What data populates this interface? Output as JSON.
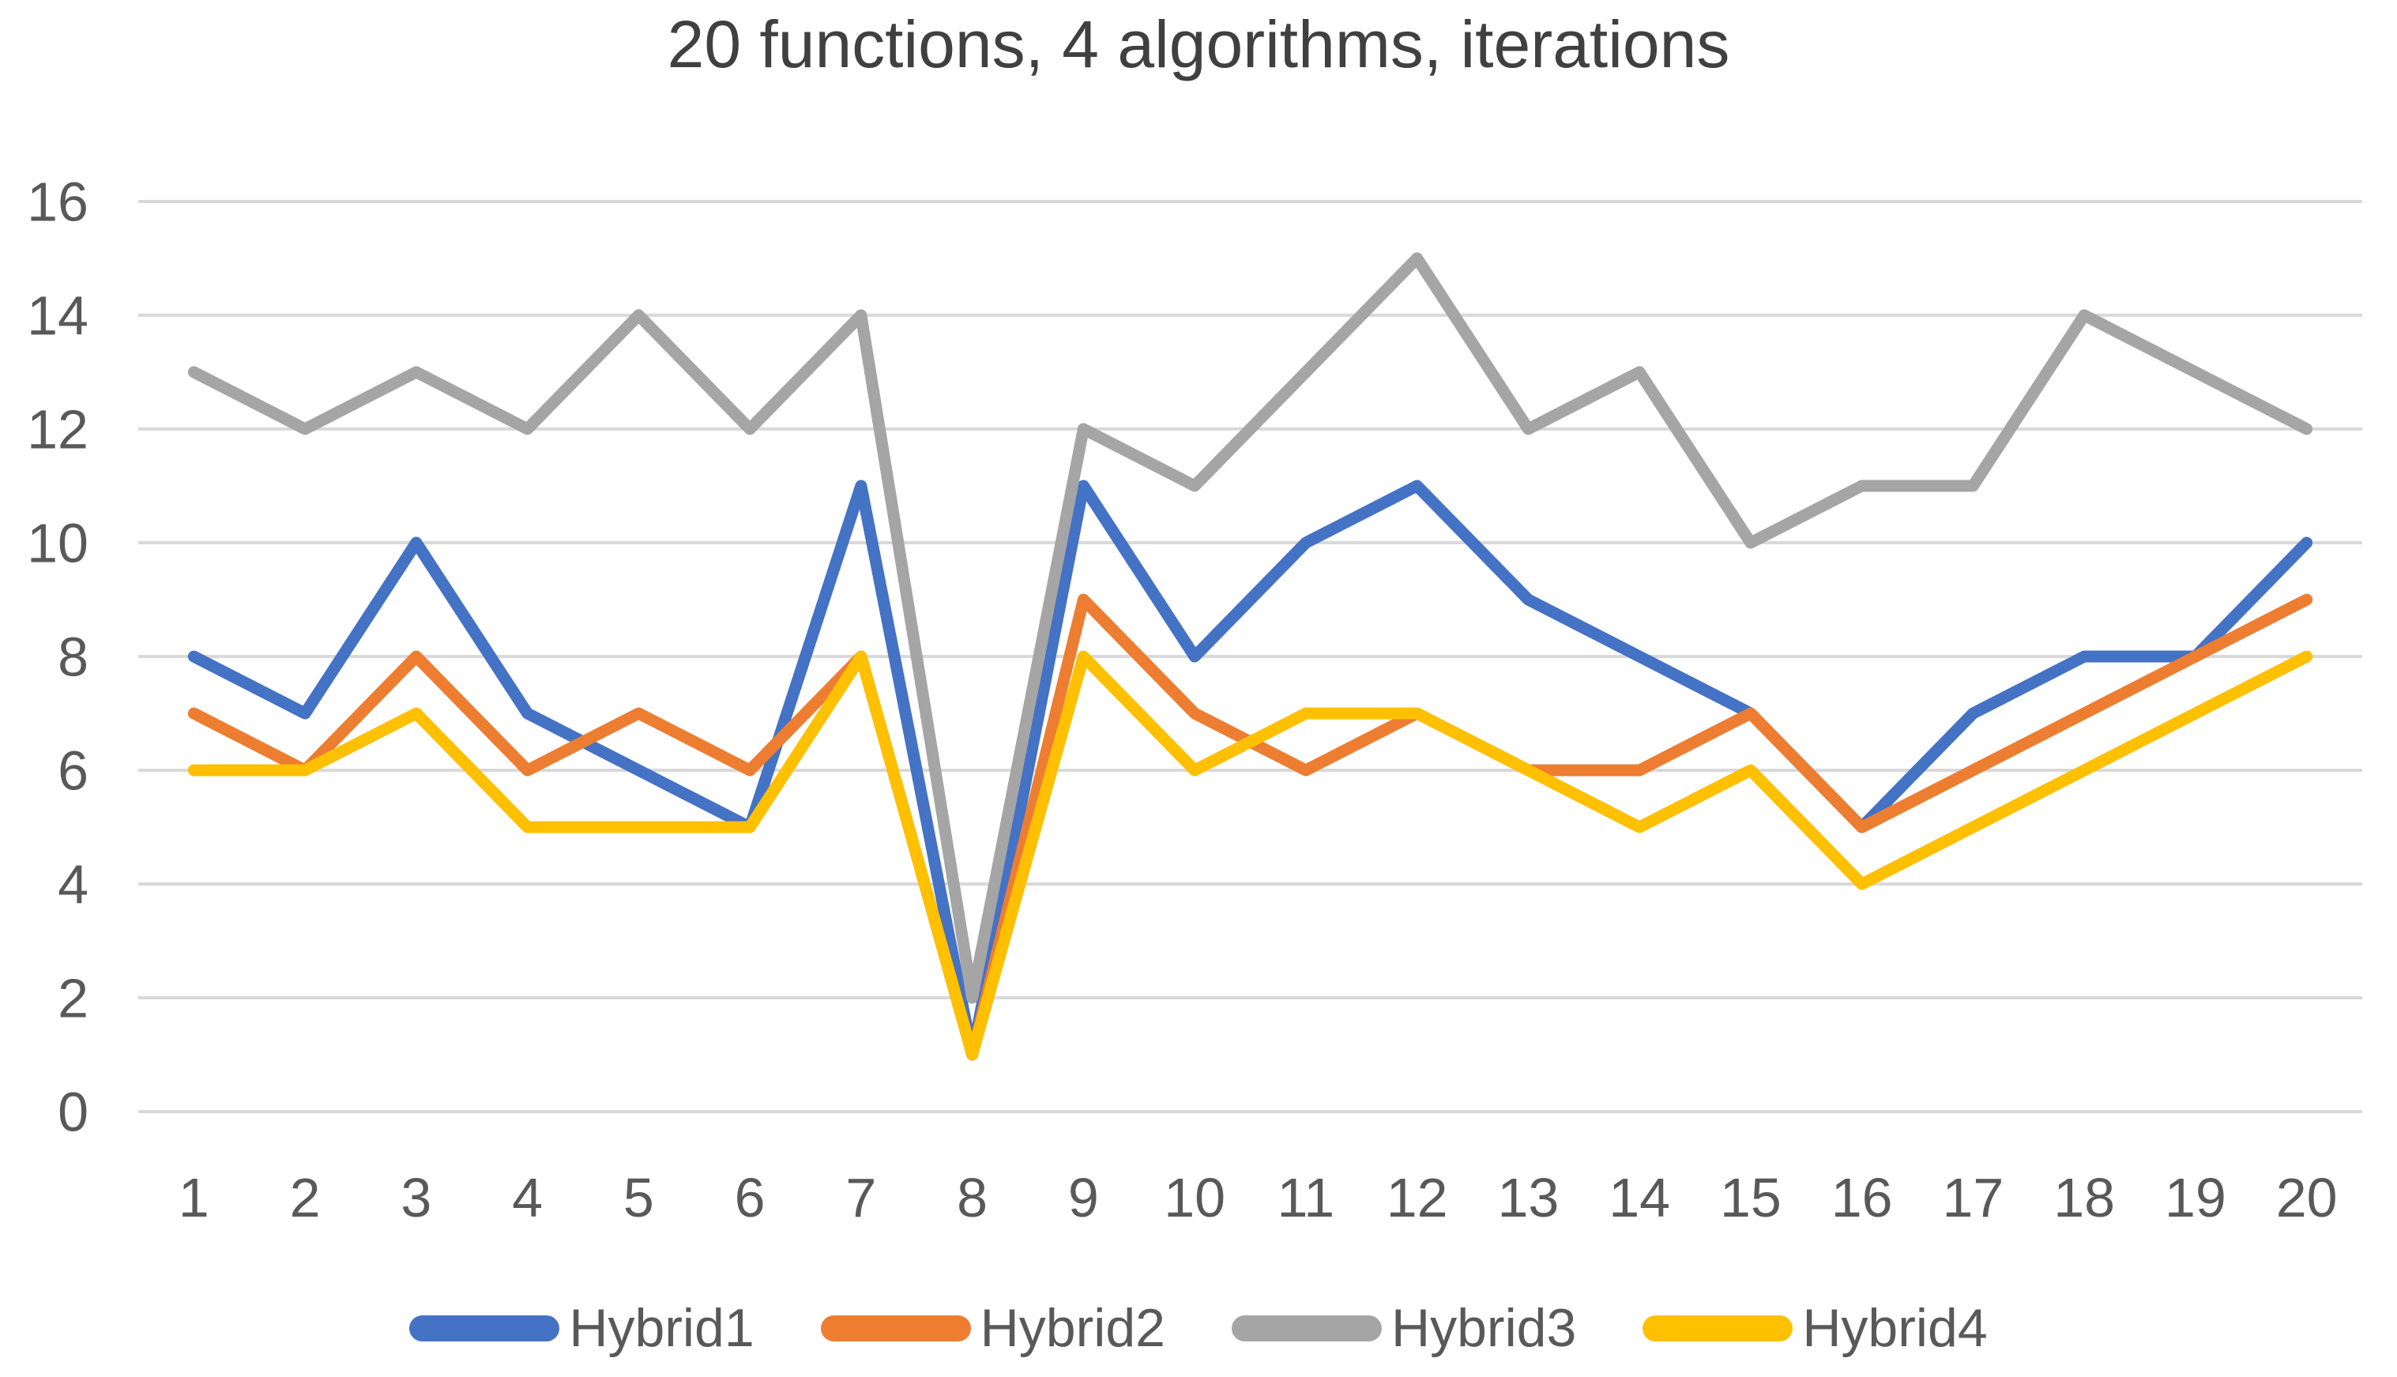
{
  "title": "20 functions, 4 algorithms, iterations",
  "chart_data": {
    "type": "line",
    "title": "20 functions, 4 algorithms, iterations",
    "categories": [
      "1",
      "2",
      "3",
      "4",
      "5",
      "6",
      "7",
      "8",
      "9",
      "10",
      "11",
      "12",
      "13",
      "14",
      "15",
      "16",
      "17",
      "18",
      "19",
      "20"
    ],
    "series": [
      {
        "name": "Hybrid1",
        "color": "#4472C4",
        "values": [
          8,
          7,
          10,
          7,
          6,
          5,
          11,
          1,
          11,
          8,
          10,
          11,
          9,
          8,
          7,
          5,
          7,
          8,
          8,
          10
        ]
      },
      {
        "name": "Hybrid2",
        "color": "#ED7D31",
        "values": [
          7,
          6,
          8,
          6,
          7,
          6,
          8,
          1,
          9,
          7,
          6,
          7,
          6,
          6,
          7,
          5,
          6,
          7,
          8,
          9
        ]
      },
      {
        "name": "Hybrid3",
        "color": "#A5A5A5",
        "values": [
          13,
          12,
          13,
          12,
          14,
          12,
          14,
          2,
          12,
          11,
          13,
          15,
          12,
          13,
          10,
          11,
          11,
          14,
          13,
          12
        ]
      },
      {
        "name": "Hybrid4",
        "color": "#FFC000",
        "values": [
          6,
          6,
          7,
          5,
          5,
          5,
          8,
          1,
          8,
          6,
          7,
          7,
          6,
          5,
          6,
          4,
          5,
          6,
          7,
          8
        ]
      }
    ],
    "xlabel": "",
    "ylabel": "",
    "ylim": [
      0,
      16
    ],
    "ytick_step": 2,
    "grid": true,
    "legend_position": "bottom",
    "grid_color": "#D9D9D9",
    "tick_color": "#595959",
    "title_color": "#404040",
    "background": "#FFFFFF",
    "line_width": 15
  }
}
